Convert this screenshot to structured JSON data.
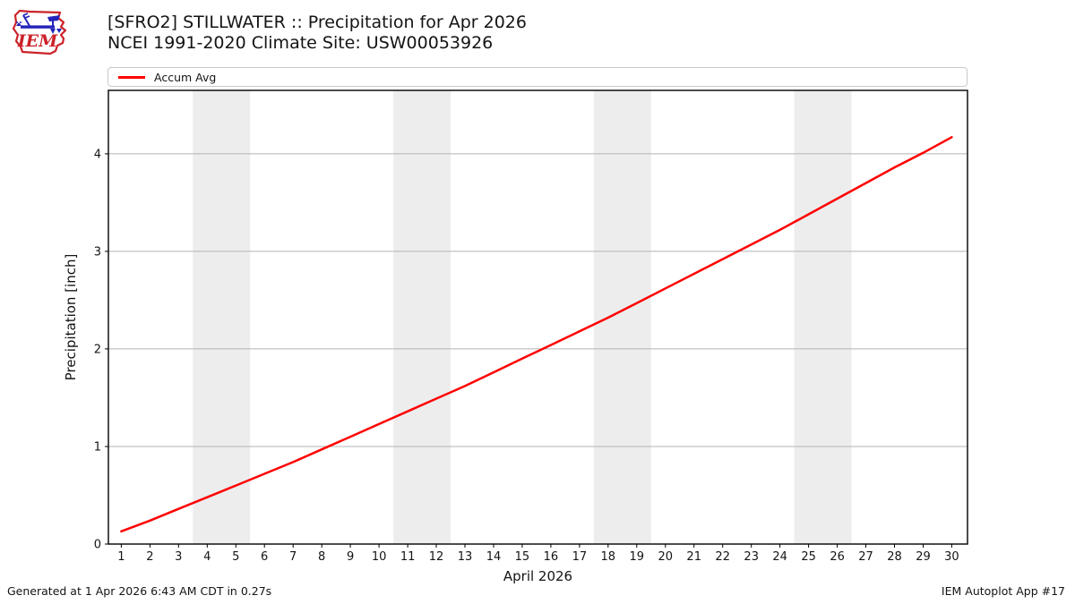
{
  "header": {
    "title_line1": "[SFRO2] STILLWATER :: Precipitation for Apr 2026",
    "title_line2": "NCEI 1991-2020 Climate Site: USW00053926",
    "logo_text": "IEM",
    "logo_red": "#cc2229",
    "logo_blue": "#2323bb"
  },
  "legend": {
    "items": [
      {
        "label": "Accum Avg",
        "color": "#ff0000"
      }
    ]
  },
  "chart_data": {
    "type": "line",
    "title": "[SFRO2] STILLWATER :: Precipitation for Apr 2026",
    "subtitle": "NCEI 1991-2020 Climate Site: USW00053926",
    "xlabel": "April 2026",
    "ylabel": "Precipitation [inch]",
    "x": [
      1,
      2,
      3,
      4,
      5,
      6,
      7,
      8,
      9,
      10,
      11,
      12,
      13,
      14,
      15,
      16,
      17,
      18,
      19,
      20,
      21,
      22,
      23,
      24,
      25,
      26,
      27,
      28,
      29,
      30
    ],
    "series": [
      {
        "name": "Accum Avg",
        "color": "#ff0000",
        "values": [
          0.13,
          0.24,
          0.36,
          0.48,
          0.6,
          0.72,
          0.84,
          0.97,
          1.1,
          1.23,
          1.36,
          1.49,
          1.62,
          1.76,
          1.9,
          2.04,
          2.18,
          2.32,
          2.47,
          2.62,
          2.77,
          2.92,
          3.07,
          3.22,
          3.38,
          3.54,
          3.7,
          3.86,
          4.01,
          4.17
        ]
      }
    ],
    "xlim": [
      0.55,
      30.55
    ],
    "ylim": [
      0,
      4.65
    ],
    "yticks": [
      0,
      1,
      2,
      3,
      4
    ],
    "grid": "horizontal",
    "grid_color": "#b3b3b3",
    "weekend_bands": [
      [
        3.5,
        5.5
      ],
      [
        10.5,
        12.5
      ],
      [
        17.5,
        19.5
      ],
      [
        24.5,
        26.5
      ]
    ],
    "band_color": "#ededed",
    "legend_position": "top",
    "legend_entries": [
      "Accum Avg"
    ]
  },
  "footer": {
    "left": "Generated at 1 Apr 2026 6:43 AM CDT in 0.27s",
    "right": "IEM Autoplot App #17"
  }
}
